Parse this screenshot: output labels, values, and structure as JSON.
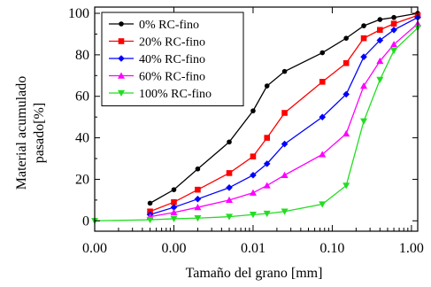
{
  "chart_data": {
    "type": "line",
    "xlabel": "Tamaño del grano [mm]",
    "ylabel_lines": [
      "Material acumulado",
      "pasado[%]"
    ],
    "x_scale": "log",
    "x_plot_range": [
      0.0001,
      1.2
    ],
    "xlim": [
      0.0001,
      1.2
    ],
    "ylim": [
      -5,
      103
    ],
    "x_ticks": [
      {
        "value": 0.0001,
        "label": "0.00"
      },
      {
        "value": 0.001,
        "label": "0.00"
      },
      {
        "value": 0.01,
        "label": "0.01"
      },
      {
        "value": 0.1,
        "label": "0.10"
      },
      {
        "value": 1.0,
        "label": "1.00"
      }
    ],
    "y_ticks": [
      0,
      20,
      40,
      60,
      80,
      100
    ],
    "legend_position": "top-left",
    "grid": false,
    "series": [
      {
        "name": "0% RC-fino",
        "color": "#000000",
        "marker": "circle",
        "x": [
          0.0005,
          0.001,
          0.002,
          0.005,
          0.01,
          0.015,
          0.025,
          0.075,
          0.15,
          0.25,
          0.4,
          0.6,
          1.2
        ],
        "y": [
          8.5,
          15,
          25,
          38,
          53,
          65,
          72,
          81,
          88,
          94,
          97,
          98,
          100
        ]
      },
      {
        "name": "20% RC-fino",
        "color": "#ff0000",
        "marker": "square",
        "x": [
          0.0005,
          0.001,
          0.002,
          0.005,
          0.01,
          0.015,
          0.025,
          0.075,
          0.15,
          0.25,
          0.4,
          0.6,
          1.2
        ],
        "y": [
          4.5,
          9,
          15,
          23,
          31,
          40,
          52,
          67,
          76,
          88,
          92,
          95,
          99
        ]
      },
      {
        "name": "40% RC-fino",
        "color": "#0000ff",
        "marker": "diamond",
        "x": [
          0.0005,
          0.001,
          0.002,
          0.005,
          0.01,
          0.015,
          0.025,
          0.075,
          0.15,
          0.25,
          0.4,
          0.6,
          1.2
        ],
        "y": [
          3,
          6.5,
          10.5,
          16,
          22,
          27.5,
          37,
          50,
          61,
          79,
          87,
          92,
          98
        ]
      },
      {
        "name": "60% RC-fino",
        "color": "#ff00ff",
        "marker": "triangle-up",
        "x": [
          0.0005,
          0.001,
          0.002,
          0.005,
          0.01,
          0.015,
          0.025,
          0.075,
          0.15,
          0.25,
          0.4,
          0.6,
          1.2
        ],
        "y": [
          2,
          4,
          6.5,
          10,
          13.5,
          17,
          22,
          32,
          42,
          65,
          77,
          85,
          95
        ]
      },
      {
        "name": "100% RC-fino",
        "color": "#22dd22",
        "marker": "triangle-down",
        "x": [
          0.0001,
          0.0005,
          0.001,
          0.002,
          0.005,
          0.01,
          0.015,
          0.025,
          0.075,
          0.15,
          0.25,
          0.4,
          0.6,
          1.2
        ],
        "y": [
          0,
          0.5,
          1,
          1.3,
          2,
          3,
          3.5,
          4.5,
          8,
          17,
          48,
          68,
          82,
          93
        ]
      }
    ]
  }
}
